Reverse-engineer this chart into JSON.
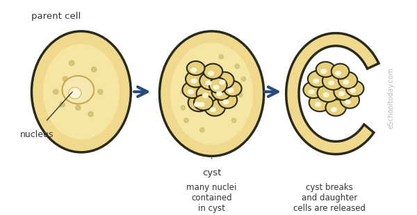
{
  "bg_color": "#ffffff",
  "cell_fill": "#f0d98c",
  "cell_outline": "#2a2a1a",
  "cell_inner_fill": "#f5e6a3",
  "nucleus_fill": "#f5e8b0",
  "nucleus_outline": "#c8a84b",
  "dot_color": "#c8b86a",
  "arrow_color": "#2a4a7a",
  "daughter_fill": "#e8d07a",
  "daughter_outline": "#2a2a1a",
  "label_color": "#333333",
  "watermark_color": "#aaaaaa",
  "title_parent": "parent cell",
  "title_cyst": "cyst",
  "label_nucleus": "nucleus",
  "label_many": "many nuclei\ncontained\nin cyst",
  "label_cyst_breaks": "cyst breaks\nand daughter\ncells are released",
  "watermark": "eSchooltoday.com"
}
